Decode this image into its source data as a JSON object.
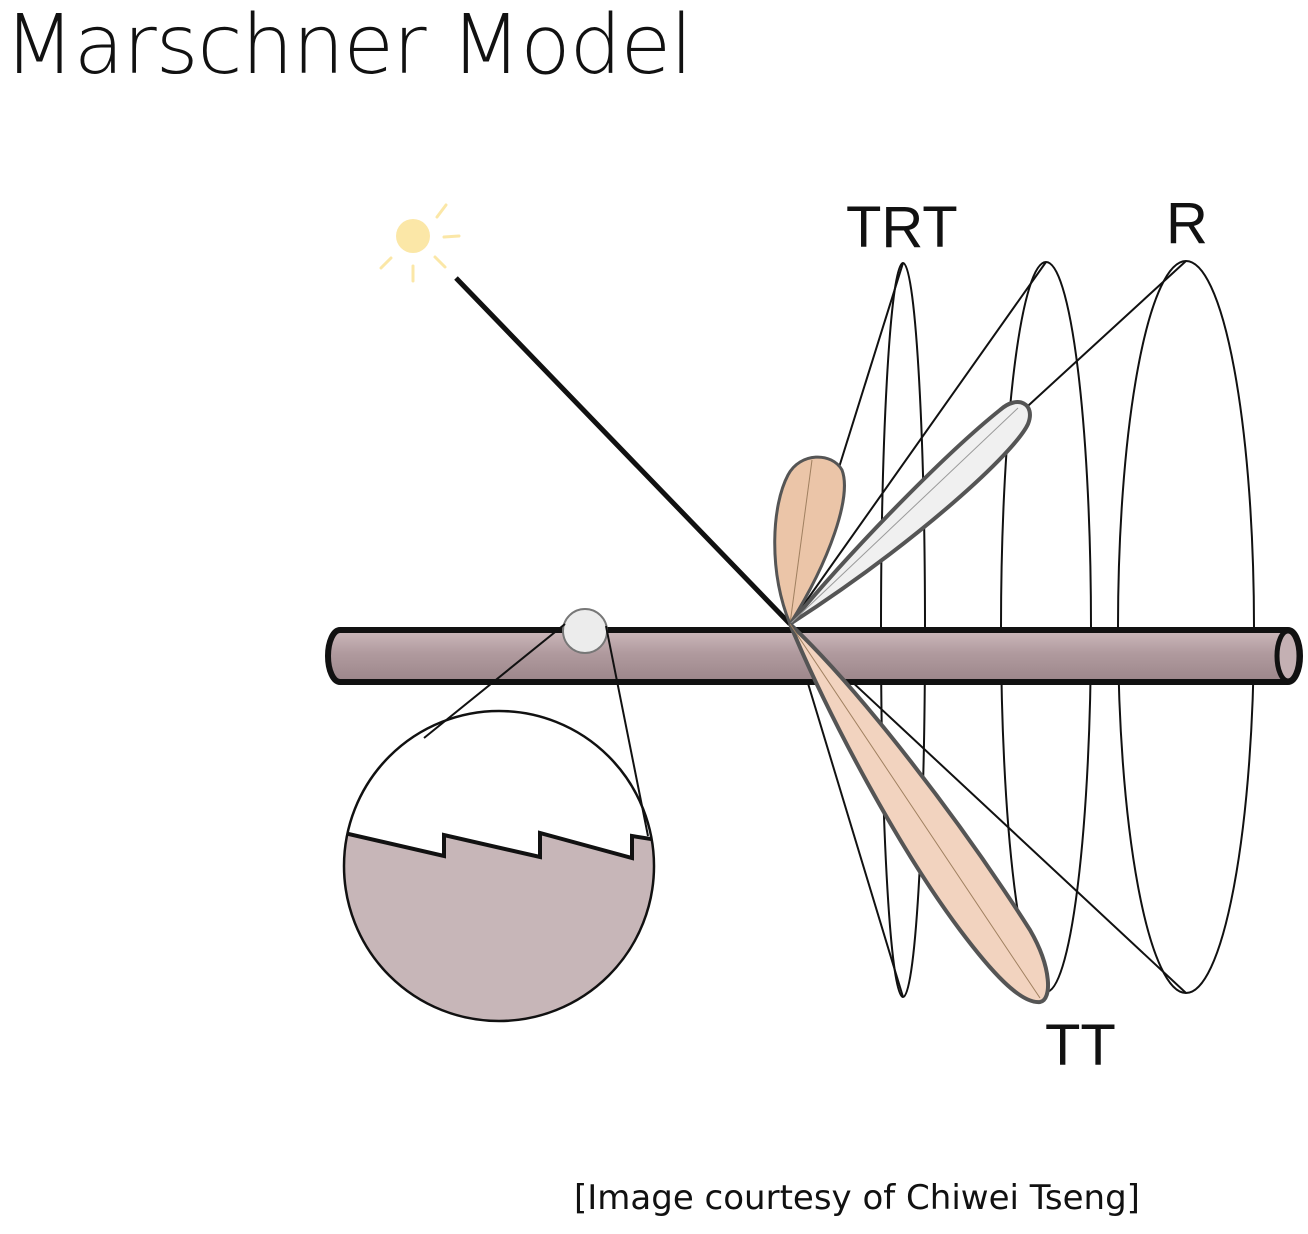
{
  "slide": {
    "title": "Marschner Model",
    "credit": "[Image courtesy of Chiwei Tseng]"
  },
  "diagram": {
    "labels": {
      "trt": "TRT",
      "r": "R",
      "tt": "TT"
    },
    "colors": {
      "hair_fiber": "#b09a9e",
      "hair_outline": "#111111",
      "cuticle_fill": "#c7b6b8",
      "lobe_trt_fill": "#ebc5a8",
      "lobe_r_fill": "#f0f0f0",
      "lobe_tt_fill": "#f2d3bf",
      "sun": "#fbe7a7"
    },
    "icons": {
      "light_source": "sun-icon",
      "magnifier": "magnifier-circle"
    }
  }
}
